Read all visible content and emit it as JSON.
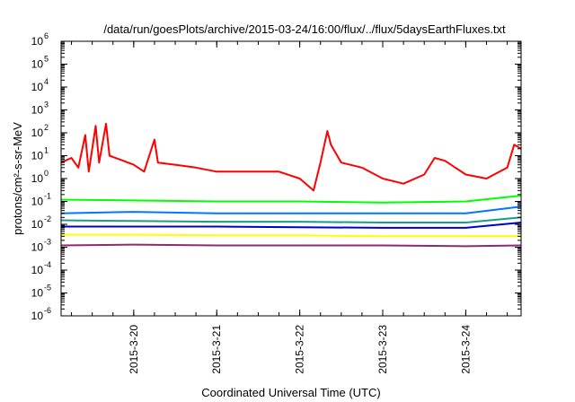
{
  "chart_data": {
    "type": "line",
    "title": "/data/run/goesPlots/archive/2015-03-24/16:00/flux/../flux/5daysEarthFluxes.txt",
    "xlabel": "Coordinated Universal Time (UTC)",
    "ylabel": "protons/cm²-s-sr-MeV",
    "x_range": [
      "2015-03-19 03:00",
      "2015-03-24 16:00"
    ],
    "x_ticks": [
      {
        "date": "2015-03-20 00:00",
        "label": "2015-3-20"
      },
      {
        "date": "2015-03-21 00:00",
        "label": "2015-3-21"
      },
      {
        "date": "2015-03-22 00:00",
        "label": "2015-3-22"
      },
      {
        "date": "2015-03-23 00:00",
        "label": "2015-3-23"
      },
      {
        "date": "2015-03-24 00:00",
        "label": "2015-3-24"
      }
    ],
    "y_scale": "log",
    "ylim": [
      1e-06,
      1000000.0
    ],
    "y_ticks": [
      {
        "value": 1000000.0,
        "base": "10",
        "exp": "6"
      },
      {
        "value": 100000.0,
        "base": "10",
        "exp": "5"
      },
      {
        "value": 10000.0,
        "base": "10",
        "exp": "4"
      },
      {
        "value": 1000.0,
        "base": "10",
        "exp": "3"
      },
      {
        "value": 100.0,
        "base": "10",
        "exp": "2"
      },
      {
        "value": 10.0,
        "base": "10",
        "exp": "1"
      },
      {
        "value": 1.0,
        "base": "10",
        "exp": "0"
      },
      {
        "value": 0.1,
        "base": "10",
        "exp": "-1"
      },
      {
        "value": 0.01,
        "base": "10",
        "exp": "-2"
      },
      {
        "value": 0.001,
        "base": "10",
        "exp": "-3"
      },
      {
        "value": 0.0001,
        "base": "10",
        "exp": "-4"
      },
      {
        "value": 1e-05,
        "base": "10",
        "exp": "-5"
      },
      {
        "value": 1e-06,
        "base": "10",
        "exp": "-6"
      }
    ],
    "grid": false,
    "legend": "none",
    "series": [
      {
        "color": "#ff0000",
        "points": [
          [
            "2015-03-19 03:00",
            5
          ],
          [
            "2015-03-19 06:00",
            8
          ],
          [
            "2015-03-19 08:00",
            3
          ],
          [
            "2015-03-19 10:00",
            80
          ],
          [
            "2015-03-19 11:00",
            2
          ],
          [
            "2015-03-19 13:00",
            200
          ],
          [
            "2015-03-19 14:00",
            5
          ],
          [
            "2015-03-19 16:00",
            250
          ],
          [
            "2015-03-19 17:00",
            10
          ],
          [
            "2015-03-19 21:00",
            6
          ],
          [
            "2015-03-20 00:00",
            4
          ],
          [
            "2015-03-20 03:00",
            2
          ],
          [
            "2015-03-20 06:00",
            50
          ],
          [
            "2015-03-20 07:00",
            5
          ],
          [
            "2015-03-20 12:00",
            4
          ],
          [
            "2015-03-20 18:00",
            3
          ],
          [
            "2015-03-21 00:00",
            2
          ],
          [
            "2015-03-21 06:00",
            2
          ],
          [
            "2015-03-21 12:00",
            2
          ],
          [
            "2015-03-21 18:00",
            2
          ],
          [
            "2015-03-22 00:00",
            1
          ],
          [
            "2015-03-22 04:00",
            0.3
          ],
          [
            "2015-03-22 06:00",
            5
          ],
          [
            "2015-03-22 08:00",
            120
          ],
          [
            "2015-03-22 09:00",
            30
          ],
          [
            "2015-03-22 12:00",
            5
          ],
          [
            "2015-03-22 18:00",
            3
          ],
          [
            "2015-03-23 00:00",
            1
          ],
          [
            "2015-03-23 06:00",
            0.6
          ],
          [
            "2015-03-23 12:00",
            1.5
          ],
          [
            "2015-03-23 15:00",
            8
          ],
          [
            "2015-03-23 18:00",
            6
          ],
          [
            "2015-03-24 00:00",
            1.5
          ],
          [
            "2015-03-24 06:00",
            1
          ],
          [
            "2015-03-24 12:00",
            3
          ],
          [
            "2015-03-24 14:00",
            30
          ],
          [
            "2015-03-24 16:00",
            20
          ]
        ]
      },
      {
        "color": "#00ff00",
        "points": [
          [
            "2015-03-19 03:00",
            0.12
          ],
          [
            "2015-03-20 00:00",
            0.11
          ],
          [
            "2015-03-21 00:00",
            0.1
          ],
          [
            "2015-03-22 00:00",
            0.1
          ],
          [
            "2015-03-23 00:00",
            0.09
          ],
          [
            "2015-03-24 00:00",
            0.1
          ],
          [
            "2015-03-24 16:00",
            0.18
          ]
        ]
      },
      {
        "color": "#0077ff",
        "points": [
          [
            "2015-03-19 03:00",
            0.03
          ],
          [
            "2015-03-20 00:00",
            0.035
          ],
          [
            "2015-03-21 00:00",
            0.03
          ],
          [
            "2015-03-22 00:00",
            0.03
          ],
          [
            "2015-03-23 00:00",
            0.03
          ],
          [
            "2015-03-24 00:00",
            0.03
          ],
          [
            "2015-03-24 16:00",
            0.06
          ]
        ]
      },
      {
        "color": "#1a9c8a",
        "points": [
          [
            "2015-03-19 03:00",
            0.015
          ],
          [
            "2015-03-20 00:00",
            0.014
          ],
          [
            "2015-03-21 00:00",
            0.013
          ],
          [
            "2015-03-22 00:00",
            0.013
          ],
          [
            "2015-03-23 00:00",
            0.012
          ],
          [
            "2015-03-24 00:00",
            0.012
          ],
          [
            "2015-03-24 16:00",
            0.02
          ]
        ]
      },
      {
        "color": "#0000cc",
        "points": [
          [
            "2015-03-19 03:00",
            0.008
          ],
          [
            "2015-03-20 00:00",
            0.008
          ],
          [
            "2015-03-21 00:00",
            0.008
          ],
          [
            "2015-03-22 00:00",
            0.0075
          ],
          [
            "2015-03-23 00:00",
            0.007
          ],
          [
            "2015-03-24 00:00",
            0.007
          ],
          [
            "2015-03-24 16:00",
            0.012
          ]
        ]
      },
      {
        "color": "#ffff00",
        "points": [
          [
            "2015-03-19 03:00",
            0.0035
          ],
          [
            "2015-03-20 00:00",
            0.0035
          ],
          [
            "2015-03-21 00:00",
            0.0033
          ],
          [
            "2015-03-22 00:00",
            0.0033
          ],
          [
            "2015-03-23 00:00",
            0.003
          ],
          [
            "2015-03-24 00:00",
            0.003
          ],
          [
            "2015-03-24 16:00",
            0.003
          ]
        ]
      },
      {
        "color": "#8b2c6e",
        "points": [
          [
            "2015-03-19 03:00",
            0.0012
          ],
          [
            "2015-03-20 00:00",
            0.0013
          ],
          [
            "2015-03-21 00:00",
            0.0012
          ],
          [
            "2015-03-22 00:00",
            0.0012
          ],
          [
            "2015-03-23 00:00",
            0.0012
          ],
          [
            "2015-03-24 00:00",
            0.0011
          ],
          [
            "2015-03-24 16:00",
            0.0012
          ]
        ]
      }
    ]
  }
}
